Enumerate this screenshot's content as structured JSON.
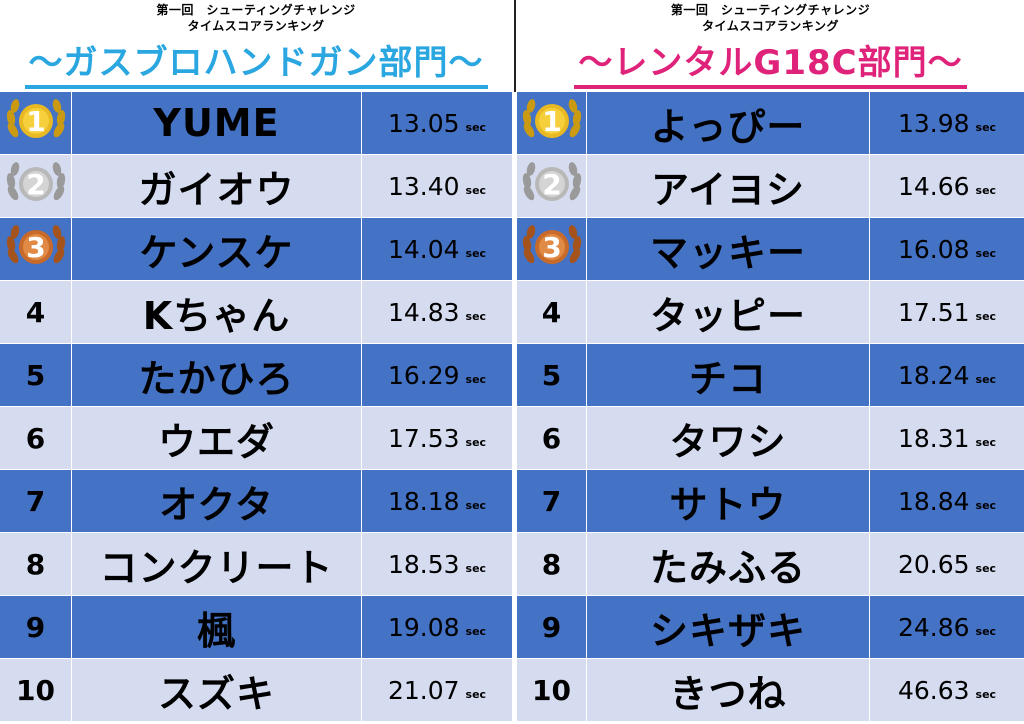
{
  "left": {
    "subtitle_line1": "第一回　シューティングチャレンジ",
    "subtitle_line2": "タイムスコアランキング",
    "category": "～ガスブロハンドガン部門～",
    "entries": [
      {
        "rank": "1",
        "name": "YUME",
        "time": "13.05",
        "unit": "sec"
      },
      {
        "rank": "2",
        "name": "ガイオウ",
        "time": "13.40",
        "unit": "sec"
      },
      {
        "rank": "3",
        "name": "ケンスケ",
        "time": "14.04",
        "unit": "sec"
      },
      {
        "rank": "4",
        "name": "Kちゃん",
        "time": "14.83",
        "unit": "sec"
      },
      {
        "rank": "5",
        "name": "たかひろ",
        "time": "16.29",
        "unit": "sec"
      },
      {
        "rank": "6",
        "name": "ウエダ",
        "time": "17.53",
        "unit": "sec"
      },
      {
        "rank": "7",
        "name": "オクタ",
        "time": "18.18",
        "unit": "sec"
      },
      {
        "rank": "8",
        "name": "コンクリート",
        "time": "18.53",
        "unit": "sec"
      },
      {
        "rank": "9",
        "name": "楓",
        "time": "19.08",
        "unit": "sec"
      },
      {
        "rank": "10",
        "name": "スズキ",
        "time": "21.07",
        "unit": "sec"
      }
    ]
  },
  "right": {
    "subtitle_line1": "第一回　シューティングチャレンジ",
    "subtitle_line2": "タイムスコアランキング",
    "category": "～レンタルG18C部門～",
    "entries": [
      {
        "rank": "1",
        "name": "よっぴー",
        "time": "13.98",
        "unit": "sec"
      },
      {
        "rank": "2",
        "name": "アイヨシ",
        "time": "14.66",
        "unit": "sec"
      },
      {
        "rank": "3",
        "name": "マッキー",
        "time": "16.08",
        "unit": "sec"
      },
      {
        "rank": "4",
        "name": "タッピー",
        "time": "17.51",
        "unit": "sec"
      },
      {
        "rank": "5",
        "name": "チコ",
        "time": "18.24",
        "unit": "sec"
      },
      {
        "rank": "6",
        "name": "タワシ",
        "time": "18.31",
        "unit": "sec"
      },
      {
        "rank": "7",
        "name": "サトウ",
        "time": "18.84",
        "unit": "sec"
      },
      {
        "rank": "8",
        "name": "たみふる",
        "time": "20.65",
        "unit": "sec"
      },
      {
        "rank": "9",
        "name": "シキザキ",
        "time": "24.86",
        "unit": "sec"
      },
      {
        "rank": "10",
        "name": "きつね",
        "time": "46.63",
        "unit": "sec"
      }
    ]
  },
  "colors": {
    "row_dark": "#4472c4",
    "row_light": "#d6dcf0",
    "left_category": "#2aa6e0",
    "right_category": "#e0237a",
    "gold": "#e8b923",
    "silver": "#b8b8b8",
    "bronze": "#c86a2a"
  },
  "icons": [
    "gold-laurel-medal-icon",
    "silver-laurel-medal-icon",
    "bronze-laurel-medal-icon"
  ]
}
